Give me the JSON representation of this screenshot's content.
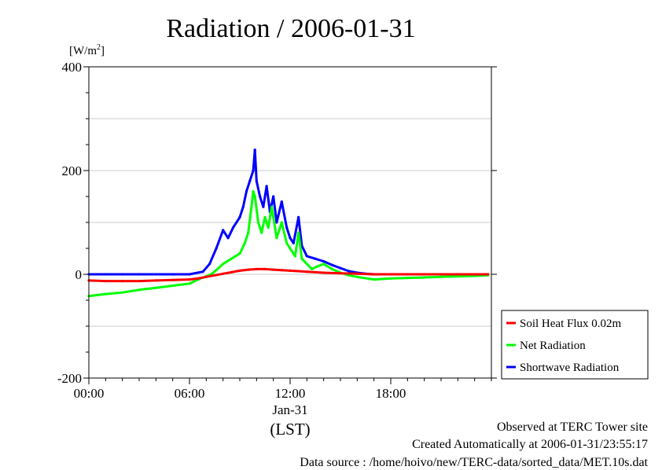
{
  "chart_data": {
    "type": "line",
    "title": "Radiation / 2006-01-31",
    "ylabel": "[W/m²]",
    "y_unit_base": "[W/m",
    "y_unit_sup": "2",
    "y_unit_close": "]",
    "ylim": [
      -200,
      400
    ],
    "y_ticks": [
      "-200",
      "0",
      "200",
      "400"
    ],
    "xlim": [
      0,
      24
    ],
    "x_ticks": [
      "00:00",
      "06:00",
      "12:00",
      "18:00"
    ],
    "x_tick_hours": [
      0,
      6,
      12,
      18
    ],
    "x_date_label": "Jan-31",
    "xlabel": "(LST)",
    "grid": true,
    "legend_position": "right-bottom",
    "series": [
      {
        "name": "Soil Heat Flux 0.02m",
        "color": "#ff0000",
        "x": [
          0,
          1,
          2,
          3,
          4,
          5,
          6,
          6.5,
          7,
          7.5,
          8,
          8.5,
          9,
          9.5,
          10,
          10.5,
          11,
          11.5,
          12,
          12.5,
          13,
          13.5,
          14,
          15,
          16,
          17,
          18,
          19,
          20,
          21,
          22,
          23,
          23.8
        ],
        "y": [
          -12,
          -13,
          -13,
          -13,
          -12,
          -11,
          -10,
          -8,
          -5,
          -2,
          1,
          4,
          7,
          9,
          10,
          10,
          9,
          8,
          7,
          6,
          5,
          4,
          3,
          2,
          1,
          0,
          0,
          0,
          0,
          0,
          0,
          0,
          0
        ]
      },
      {
        "name": "Net Radiation",
        "color": "#00ff00",
        "x": [
          0,
          0.5,
          1,
          2,
          3,
          4,
          5,
          6,
          6.5,
          7,
          7.3,
          7.6,
          8,
          8.5,
          9,
          9.3,
          9.5,
          9.7,
          9.8,
          9.9,
          10.1,
          10.3,
          10.5,
          10.7,
          10.9,
          11.2,
          11.5,
          11.8,
          12,
          12.3,
          12.5,
          12.7,
          13,
          13.3,
          13.6,
          14,
          14.5,
          15,
          15.5,
          16,
          17,
          18,
          19,
          20,
          21,
          22,
          23,
          23.8
        ],
        "y": [
          -42,
          -40,
          -38,
          -35,
          -30,
          -26,
          -22,
          -18,
          -10,
          -4,
          0,
          8,
          20,
          30,
          40,
          60,
          80,
          130,
          160,
          150,
          100,
          80,
          110,
          90,
          130,
          70,
          100,
          60,
          50,
          35,
          80,
          30,
          20,
          10,
          15,
          20,
          10,
          3,
          -2,
          -5,
          -10,
          -8,
          -7,
          -6,
          -5,
          -4,
          -3,
          -2
        ]
      },
      {
        "name": "Shortwave Radiation",
        "color": "#0000ff",
        "x": [
          0,
          1,
          2,
          3,
          4,
          5,
          6,
          6.8,
          7.2,
          7.6,
          8,
          8.3,
          8.6,
          9,
          9.2,
          9.4,
          9.6,
          9.8,
          9.9,
          10,
          10.2,
          10.4,
          10.6,
          10.8,
          11,
          11.2,
          11.5,
          11.8,
          12,
          12.2,
          12.5,
          12.7,
          13,
          13.5,
          14,
          14.5,
          15,
          15.5,
          16,
          16.5,
          17,
          18,
          20,
          22,
          23.8
        ],
        "y": [
          0,
          0,
          0,
          0,
          0,
          0,
          0,
          5,
          20,
          50,
          85,
          70,
          90,
          110,
          130,
          160,
          180,
          200,
          240,
          180,
          150,
          130,
          170,
          120,
          150,
          100,
          140,
          90,
          70,
          60,
          110,
          55,
          35,
          30,
          25,
          18,
          12,
          6,
          3,
          1,
          0,
          0,
          0,
          0,
          0
        ]
      }
    ]
  },
  "footer": {
    "observed": "Observed at TERC Tower site",
    "created": "Created Automatically at 2006-01-31/23:55:17",
    "source": "Data source : /home/hoivo/new/TERC-data/sorted_data/MET.10s.dat"
  }
}
